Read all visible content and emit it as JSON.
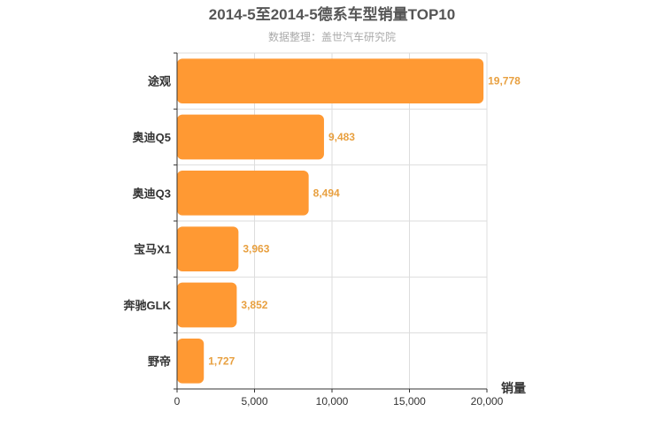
{
  "chart_data": {
    "type": "bar",
    "orientation": "horizontal",
    "title": "2014-5至2014-5德系车型销量TOP10",
    "subtitle": "数据整理：盖世汽车研究院",
    "categories": [
      "途观",
      "奥迪Q5",
      "奥迪Q3",
      "宝马X1",
      "奔驰GLK",
      "野帝"
    ],
    "values": [
      19778,
      9483,
      8494,
      3963,
      3852,
      1727
    ],
    "value_labels": [
      "19,778",
      "9,483",
      "8,494",
      "3,963",
      "3,852",
      "1,727"
    ],
    "xlabel": "销量",
    "ylabel": "",
    "xlim": [
      0,
      20000
    ],
    "xticks": [
      0,
      5000,
      10000,
      15000,
      20000
    ],
    "xtick_labels": [
      "0",
      "5,000",
      "10,000",
      "15,000",
      "20,000"
    ],
    "grid": true,
    "bar_color": "#ff9933",
    "value_label_color": "#e8a040"
  }
}
